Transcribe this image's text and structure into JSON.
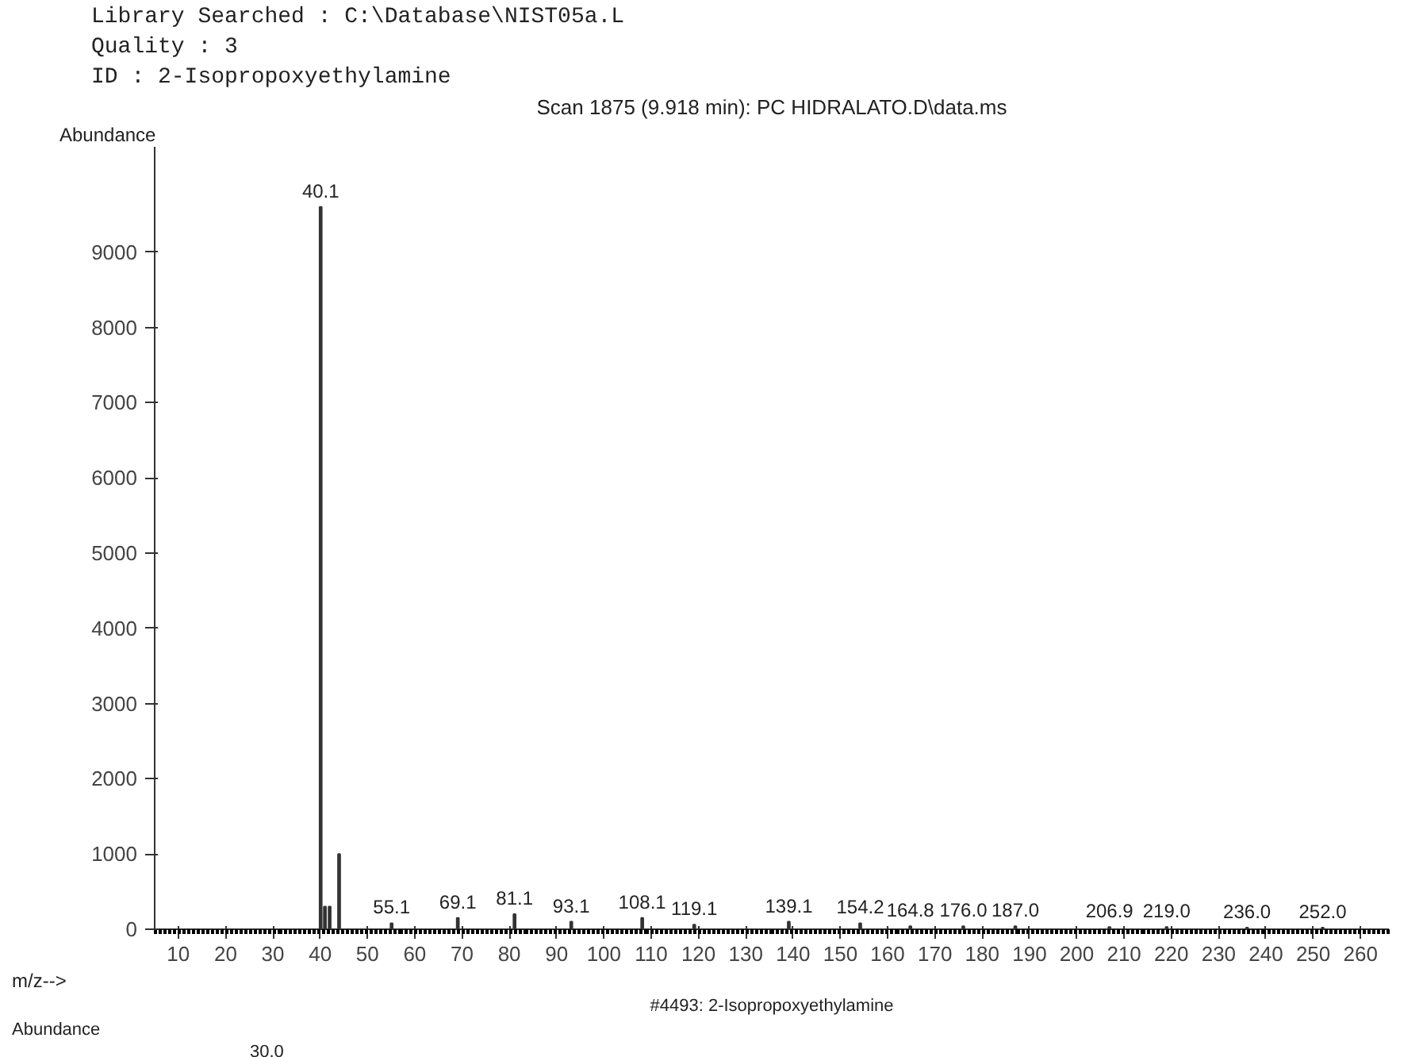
{
  "chart_data": {
    "type": "bar",
    "title": "Scan 1875 (9.918 min): PC HIDRALATO.D\\data.ms",
    "xlabel": "m/z-->",
    "ylabel": "Abundance",
    "x": [
      40.1,
      41,
      42,
      44,
      55.1,
      69.1,
      81.1,
      93.1,
      108.1,
      119.1,
      139.1,
      154.2,
      164.8,
      176.0,
      187.0,
      206.9,
      219.0,
      236.0,
      252.0
    ],
    "series": [
      {
        "color": "#333333",
        "values": [
          9600,
          300,
          300,
          1000,
          80,
          150,
          200,
          100,
          150,
          60,
          100,
          80,
          40,
          40,
          40,
          30,
          30,
          20,
          20
        ]
      }
    ],
    "xlim": [
      5,
      266
    ],
    "xticks": [
      10,
      20,
      30,
      40,
      50,
      60,
      70,
      80,
      90,
      100,
      110,
      120,
      130,
      140,
      150,
      160,
      170,
      180,
      190,
      200,
      210,
      220,
      230,
      240,
      250,
      260
    ],
    "ylim": [
      0,
      10400
    ],
    "yticks": [
      0,
      1000,
      2000,
      3000,
      4000,
      5000,
      6000,
      7000,
      8000,
      9000
    ],
    "grid": false,
    "annotations": [
      "Library Searched : C:\\Database\\NIST05a.L",
      "Quality          : 3",
      "ID               : 2-Isopropoxyethylamine",
      {
        "text": "40.1",
        "x": 40.1,
        "y": 9600
      },
      {
        "text": "55.1",
        "x": 55.1,
        "y": 80
      },
      {
        "text": "69.1",
        "x": 69.1,
        "y": 150
      },
      {
        "text": "81.1",
        "x": 81.1,
        "y": 200
      },
      {
        "text": "93.1",
        "x": 93.1,
        "y": 100
      },
      {
        "text": "108.1",
        "x": 108.1,
        "y": 150
      },
      {
        "text": "119.1",
        "x": 119.1,
        "y": 60
      },
      {
        "text": "139.1",
        "x": 139.1,
        "y": 100
      },
      {
        "text": "154.2",
        "x": 154.2,
        "y": 80
      },
      {
        "text": "164.8",
        "x": 164.8,
        "y": 40
      },
      {
        "text": "176.0",
        "x": 176.0,
        "y": 40
      },
      {
        "text": "187.0",
        "x": 187.0,
        "y": 40
      },
      {
        "text": "206.9",
        "x": 206.9,
        "y": 30
      },
      {
        "text": "219.0",
        "x": 219.0,
        "y": 30
      },
      {
        "text": "236.0",
        "x": 236.0,
        "y": 20
      },
      {
        "text": "252.0",
        "x": 252.0,
        "y": 20
      },
      "Abundance",
      "30.0",
      "#4493: 2-Isopropoxyethylamine"
    ]
  }
}
